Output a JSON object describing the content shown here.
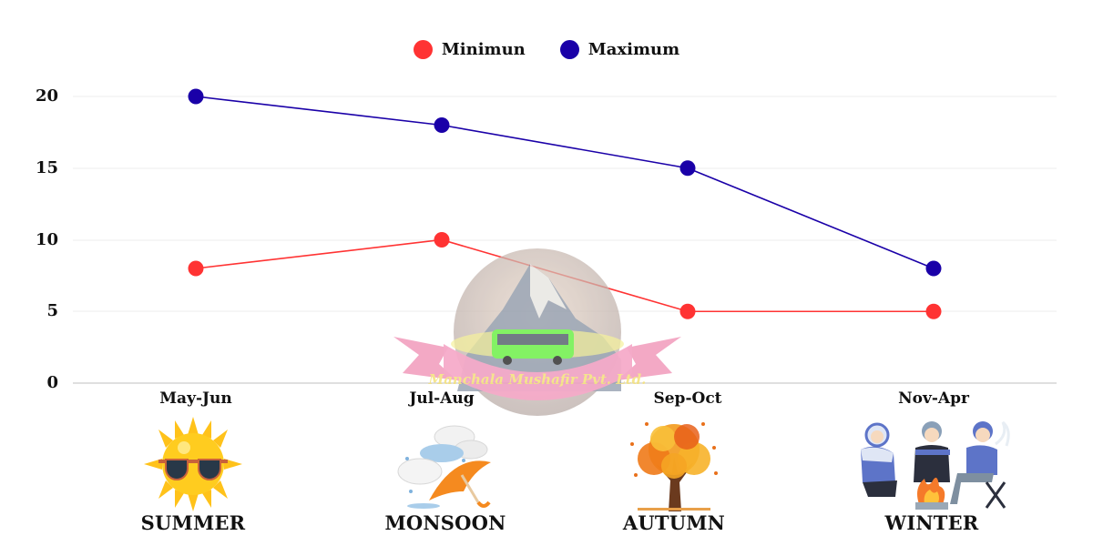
{
  "legend": {
    "items": [
      {
        "label": "Minimun",
        "color": "#ff3333"
      },
      {
        "label": "Maximum",
        "color": "#1a00a8"
      }
    ]
  },
  "yaxis": {
    "ticks": [
      "20",
      "15",
      "10",
      "5",
      "0"
    ]
  },
  "xaxis": {
    "ticks": [
      "May-Jun",
      "Jul-Aug",
      "Sep-Oct",
      "Nov-Apr"
    ]
  },
  "seasons": [
    {
      "label": "SUMMER",
      "icon": "sun-with-sunglasses-icon"
    },
    {
      "label": "MONSOON",
      "icon": "rain-cloud-umbrella-icon"
    },
    {
      "label": "AUTUMN",
      "icon": "autumn-tree-icon"
    },
    {
      "label": "WINTER",
      "icon": "people-around-campfire-icon"
    }
  ],
  "watermark": {
    "text": "Manchala Mushafir Pvt. Ltd."
  },
  "chart_data": {
    "type": "line",
    "title": "",
    "categories": [
      "May-Jun",
      "Jul-Aug",
      "Sep-Oct",
      "Nov-Apr"
    ],
    "series": [
      {
        "name": "Minimun",
        "color": "#ff3333",
        "values": [
          8,
          10,
          5,
          5
        ]
      },
      {
        "name": "Maximum",
        "color": "#1a00a8",
        "values": [
          20,
          18,
          15,
          8
        ]
      }
    ],
    "xlabel": "",
    "ylabel": "",
    "ylim": [
      0,
      20
    ],
    "yticks": [
      0,
      5,
      10,
      15,
      20
    ],
    "grid": true,
    "legend_position": "top-center",
    "annotations": [
      "SUMMER",
      "MONSOON",
      "AUTUMN",
      "WINTER"
    ]
  }
}
